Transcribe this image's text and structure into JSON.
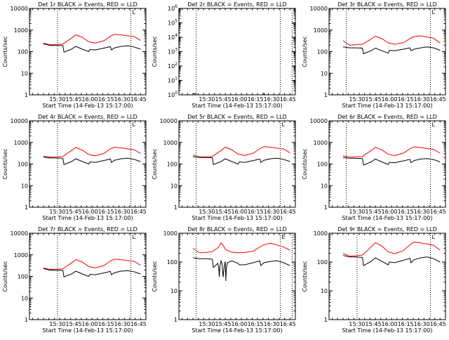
{
  "chart_data": [
    {
      "type": "line",
      "title": "Det 1r BLACK = Events, RED = LLD",
      "marker": "L",
      "ylabel": "Counts/sec",
      "xlabel": "Start Time (14-Feb-13 15:17:00)",
      "xticks": [
        "15:30",
        "15:45",
        "16:00",
        "16:15",
        "16:30",
        "16:45"
      ],
      "yscale": "log",
      "yticks": [
        "1",
        "10",
        "100",
        "1000",
        "10000"
      ],
      "ylim": [
        1,
        10000
      ],
      "vlines": [
        "15:30",
        "16:38"
      ],
      "series": [
        {
          "color": "#ff0000",
          "x": [
            0,
            6,
            12,
            18,
            26,
            30,
            36,
            42,
            48,
            56,
            62,
            66,
            72,
            78,
            84,
            90
          ],
          "values": [
            250,
            210,
            215,
            225,
            420,
            600,
            460,
            285,
            250,
            320,
            520,
            630,
            600,
            540,
            500,
            330
          ]
        },
        {
          "color": "#000000",
          "x": [
            0,
            6,
            12,
            18,
            19,
            26,
            30,
            36,
            42,
            43,
            48,
            56,
            62,
            63,
            66,
            72,
            78,
            84,
            90
          ],
          "values": [
            230,
            195,
            195,
            190,
            95,
            130,
            175,
            130,
            100,
            125,
            120,
            145,
            170,
            120,
            150,
            175,
            185,
            165,
            130
          ]
        }
      ]
    },
    {
      "type": "line",
      "title": "Det 2r BLACK = Events, RED = LLD",
      "marker": "",
      "ylabel": "Counts/sec",
      "xlabel": "Start Time (14-Feb-13 15:17:00)",
      "xticks": [
        "15:30",
        "15:45",
        "16:00",
        "16:15",
        "16:30",
        "16:45"
      ],
      "yscale": "log",
      "yticks": [
        "10^0",
        "10^1",
        "10^2",
        "10^3",
        "10^4",
        "10^5",
        "10^6"
      ],
      "ylim": [
        1,
        1000000
      ],
      "vlines": [
        "15:20",
        "16:38",
        "16:49"
      ],
      "series": [
        {
          "color": "#000000",
          "x": [
            0,
            2,
            3
          ],
          "values": [
            1.2,
            1.2,
            1.1
          ]
        },
        {
          "color": "#000000",
          "x": [
            65,
            66,
            67
          ],
          "values": [
            1.3,
            1.2,
            1.1
          ]
        }
      ]
    },
    {
      "type": "line",
      "title": "Det 3r BLACK = Events, RED = LLD",
      "marker": "L",
      "ylabel": "Counts/sec",
      "xlabel": "Start Time (14-Feb-13 15:17:00)",
      "xticks": [
        "15:30",
        "15:45",
        "16:00",
        "16:15",
        "16:30",
        "16:45"
      ],
      "yscale": "log",
      "yticks": [
        "1",
        "10",
        "100",
        "1000",
        "10000"
      ],
      "ylim": [
        1,
        10000
      ],
      "vlines": [
        "15:20",
        "16:38"
      ],
      "series": [
        {
          "color": "#ff0000",
          "x": [
            0,
            6,
            12,
            18,
            26,
            30,
            36,
            42,
            48,
            56,
            62,
            66,
            72,
            78,
            84,
            90
          ],
          "values": [
            320,
            200,
            210,
            220,
            380,
            520,
            400,
            255,
            220,
            260,
            400,
            500,
            540,
            470,
            420,
            250
          ]
        },
        {
          "color": "#000000",
          "x": [
            0,
            6,
            12,
            18,
            19,
            26,
            30,
            36,
            42,
            43,
            48,
            56,
            62,
            63,
            66,
            72,
            78,
            84,
            90
          ],
          "values": [
            165,
            150,
            150,
            145,
            80,
            110,
            145,
            110,
            85,
            115,
            110,
            130,
            150,
            110,
            130,
            150,
            165,
            150,
            115
          ]
        }
      ]
    },
    {
      "type": "line",
      "title": "Det 4r BLACK = Events, RED = LLD",
      "marker": "L",
      "ylabel": "Counts/sec",
      "xlabel": "Start Time (14-Feb-13 15:17:00)",
      "xticks": [
        "15:30",
        "15:45",
        "16:00",
        "16:15",
        "16:30",
        "16:45"
      ],
      "yscale": "log",
      "yticks": [
        "1",
        "10",
        "100",
        "1000",
        "10000"
      ],
      "ylim": [
        1,
        10000
      ],
      "vlines": [
        "15:30",
        "16:38"
      ],
      "series": [
        {
          "color": "#ff0000",
          "x": [
            0,
            6,
            12,
            18,
            26,
            30,
            36,
            42,
            48,
            56,
            62,
            66,
            72,
            78,
            84,
            90
          ],
          "values": [
            230,
            210,
            215,
            225,
            420,
            580,
            440,
            275,
            240,
            310,
            500,
            600,
            560,
            500,
            460,
            310
          ]
        },
        {
          "color": "#000000",
          "x": [
            0,
            6,
            12,
            18,
            19,
            26,
            30,
            36,
            42,
            43,
            48,
            56,
            62,
            63,
            66,
            72,
            78,
            84,
            90
          ],
          "values": [
            210,
            190,
            190,
            185,
            95,
            130,
            175,
            130,
            100,
            125,
            120,
            145,
            170,
            120,
            150,
            175,
            185,
            165,
            130
          ]
        }
      ]
    },
    {
      "type": "line",
      "title": "Det 5r BLACK = Events, RED = LLD",
      "marker": "L",
      "ylabel": "Counts/sec",
      "xlabel": "Start Time (14-Feb-13 15:17:00)",
      "xticks": [
        "15:30",
        "15:45",
        "16:00",
        "16:15",
        "16:30",
        "16:45"
      ],
      "yscale": "log",
      "yticks": [
        "1",
        "10",
        "100",
        "1000",
        "10000"
      ],
      "ylim": [
        1,
        10000
      ],
      "vlines": [
        "15:20",
        "16:38"
      ],
      "series": [
        {
          "color": "#ff0000",
          "x": [
            0,
            6,
            12,
            18,
            26,
            30,
            36,
            42,
            48,
            56,
            62,
            66,
            72,
            78,
            84,
            90
          ],
          "values": [
            260,
            215,
            215,
            225,
            420,
            600,
            460,
            285,
            250,
            320,
            520,
            640,
            600,
            540,
            500,
            330
          ]
        },
        {
          "color": "#000000",
          "x": [
            0,
            6,
            12,
            18,
            19,
            26,
            30,
            36,
            42,
            43,
            48,
            56,
            62,
            63,
            66,
            72,
            78,
            84,
            90
          ],
          "values": [
            220,
            200,
            200,
            195,
            95,
            130,
            175,
            130,
            100,
            125,
            120,
            145,
            170,
            120,
            150,
            175,
            185,
            165,
            130
          ]
        }
      ]
    },
    {
      "type": "line",
      "title": "Det 6r BLACK = Events, RED = LLD",
      "marker": "L",
      "ylabel": "Counts/sec",
      "xlabel": "Start Time (14-Feb-13 15:17:00)",
      "xticks": [
        "15:30",
        "15:45",
        "16:00",
        "16:15",
        "16:30",
        "16:45"
      ],
      "yscale": "log",
      "yticks": [
        "1",
        "10",
        "100",
        "1000",
        "10000"
      ],
      "ylim": [
        1,
        10000
      ],
      "vlines": [
        "15:20",
        "16:38"
      ],
      "series": [
        {
          "color": "#ff0000",
          "x": [
            0,
            6,
            12,
            18,
            26,
            30,
            36,
            42,
            48,
            56,
            62,
            66,
            72,
            78,
            84,
            90
          ],
          "values": [
            240,
            210,
            215,
            225,
            420,
            590,
            450,
            280,
            245,
            320,
            510,
            620,
            580,
            520,
            480,
            320
          ]
        },
        {
          "color": "#000000",
          "x": [
            0,
            6,
            12,
            18,
            19,
            26,
            30,
            36,
            42,
            43,
            48,
            56,
            62,
            63,
            66,
            72,
            78,
            84,
            90
          ],
          "values": [
            200,
            185,
            185,
            180,
            90,
            125,
            170,
            125,
            95,
            120,
            115,
            140,
            165,
            115,
            145,
            170,
            180,
            160,
            125
          ]
        }
      ]
    },
    {
      "type": "line",
      "title": "Det 7r BLACK = Events, RED = LLD",
      "marker": "L",
      "ylabel": "Counts/sec",
      "xlabel": "Start Time (14-Feb-13 15:17:00)",
      "xticks": [
        "15:30",
        "15:45",
        "16:00",
        "16:15",
        "16:30",
        "16:45"
      ],
      "yscale": "log",
      "yticks": [
        "1",
        "10",
        "100",
        "1000",
        "10000"
      ],
      "ylim": [
        1,
        10000
      ],
      "vlines": [
        "15:30",
        "16:38"
      ],
      "series": [
        {
          "color": "#ff0000",
          "x": [
            0,
            6,
            12,
            18,
            26,
            30,
            36,
            42,
            48,
            56,
            62,
            66,
            72,
            78,
            84,
            90
          ],
          "values": [
            250,
            210,
            215,
            225,
            420,
            610,
            460,
            285,
            250,
            320,
            520,
            640,
            600,
            540,
            500,
            330
          ]
        },
        {
          "color": "#000000",
          "x": [
            0,
            6,
            12,
            18,
            19,
            26,
            30,
            36,
            42,
            43,
            48,
            56,
            62,
            63,
            66,
            72,
            78,
            84,
            90
          ],
          "values": [
            230,
            195,
            195,
            190,
            95,
            130,
            175,
            130,
            100,
            125,
            120,
            145,
            170,
            120,
            150,
            175,
            185,
            165,
            130
          ]
        }
      ]
    },
    {
      "type": "line",
      "title": "Det 8r BLACK = Events, RED = LLD",
      "marker": "E",
      "ylabel": "Counts/sec",
      "xlabel": "Start Time (14-Feb-13 15:17:00)",
      "xticks": [
        "15:30",
        "15:45",
        "16:00",
        "16:15",
        "16:30",
        "16:45"
      ],
      "yscale": "log",
      "yticks": [
        "1",
        "10",
        "100",
        "1000"
      ],
      "ylim": [
        1,
        1000
      ],
      "vlines": [
        "15:20",
        "16:38",
        "16:49"
      ],
      "series": [
        {
          "color": "#ff0000",
          "x": [
            0,
            6,
            12,
            18,
            24,
            26,
            28,
            30,
            32,
            36,
            42,
            48,
            56,
            62,
            66,
            72,
            78,
            84,
            90
          ],
          "values": [
            300,
            210,
            215,
            230,
            330,
            460,
            380,
            280,
            250,
            220,
            210,
            215,
            240,
            330,
            400,
            450,
            390,
            330,
            260
          ]
        },
        {
          "color": "#000000",
          "x": [
            0,
            6,
            12,
            18,
            19,
            23,
            24,
            24.5,
            25,
            26,
            27,
            28,
            29,
            30,
            30.5,
            31,
            32,
            36,
            42,
            43,
            48,
            56,
            62,
            63,
            66,
            72,
            78,
            84,
            90
          ],
          "values": [
            140,
            130,
            130,
            125,
            65,
            90,
            60,
            30,
            70,
            110,
            90,
            30,
            70,
            105,
            22,
            60,
            95,
            110,
            90,
            80,
            80,
            95,
            110,
            75,
            95,
            105,
            110,
            95,
            75
          ]
        }
      ]
    },
    {
      "type": "line",
      "title": "Det 9r BLACK = Events, RED = LLD",
      "marker": "L",
      "ylabel": "Counts/sec",
      "xlabel": "Start Time (14-Feb-13 15:17:00)",
      "xticks": [
        "15:30",
        "15:45",
        "16:00",
        "16:15",
        "16:30",
        "16:45"
      ],
      "yscale": "log",
      "yticks": [
        "1",
        "10",
        "100",
        "1000"
      ],
      "ylim": [
        1,
        1000
      ],
      "vlines": [
        "15:30",
        "16:38"
      ],
      "series": [
        {
          "color": "#ff0000",
          "x": [
            0,
            6,
            12,
            18,
            26,
            30,
            36,
            42,
            48,
            56,
            62,
            66,
            72,
            78,
            84,
            90
          ],
          "values": [
            200,
            160,
            165,
            175,
            330,
            470,
            360,
            225,
            195,
            250,
            400,
            490,
            460,
            420,
            380,
            260
          ]
        },
        {
          "color": "#000000",
          "x": [
            0,
            6,
            12,
            18,
            19,
            26,
            30,
            36,
            42,
            43,
            48,
            56,
            62,
            63,
            66,
            72,
            78,
            84,
            90
          ],
          "values": [
            170,
            150,
            150,
            145,
            75,
            105,
            140,
            105,
            80,
            100,
            95,
            115,
            135,
            95,
            120,
            140,
            150,
            130,
            100
          ]
        }
      ]
    }
  ]
}
